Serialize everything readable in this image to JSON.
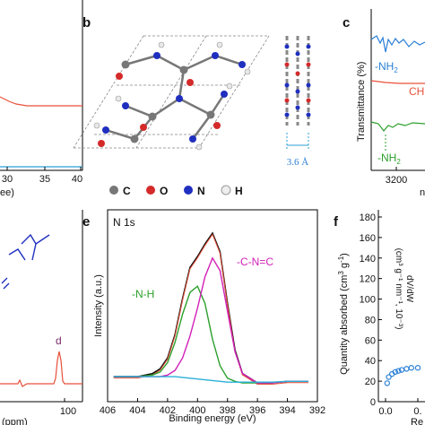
{
  "panels": {
    "a": {
      "x_ticks": [
        "30",
        "35",
        "40"
      ],
      "x_label_fragment": "ee)"
    },
    "b": {
      "letter": "b",
      "legend": [
        "C",
        "O",
        "N",
        "H"
      ],
      "spacing": "3.6 Å"
    },
    "c": {
      "letter": "c",
      "ylabel": "Transmittance (%)",
      "labels": {
        "nh2_top": "-NH",
        "nh2_top_sub": "2",
        "ch": "CH",
        "nh2_bottom": "-NH",
        "nh2_bottom_sub": "2"
      },
      "x_tick": "3200",
      "x_fragment": "n"
    },
    "d": {
      "peak_label": "d",
      "x_ticks": [
        "100"
      ],
      "x_label_fragment": "(ppm)"
    },
    "e": {
      "letter": "e",
      "inner_title": "N 1s",
      "xlabel": "Binding energy (eV)",
      "ylabel": "Intensity (a.u.)",
      "peak_labels": [
        "-N-H",
        "-C-N=C"
      ],
      "x_ticks": [
        "406",
        "404",
        "402",
        "400",
        "398",
        "396",
        "394",
        "392"
      ]
    },
    "f": {
      "letter": "f",
      "ylabel": "Quantity absorbed (cm",
      "ylabel_sup": "3",
      "ylabel_mid": " g",
      "ylabel_sup2": "-1",
      "ylabel_end": ")",
      "inset_ylabel_1": "dV/dW",
      "inset_ylabel_2": "(cm³ g⁻¹ nm⁻¹, 10⁻³)",
      "x_ticks": [
        "0.0",
        "0."
      ],
      "y_ticks": [
        "0",
        "20",
        "40",
        "60",
        "80",
        "100",
        "120",
        "140",
        "160",
        "180"
      ],
      "x_fragment": "Re"
    }
  },
  "chart_data": [
    {
      "type": "line",
      "panel": "e",
      "title": "N 1s",
      "xlabel": "Binding energy (eV)",
      "ylabel": "Intensity (a.u.)",
      "xlim": [
        406,
        392
      ],
      "x": [
        405.6,
        404,
        403,
        402.5,
        402,
        401.5,
        401,
        400.5,
        400,
        399.5,
        399,
        398.5,
        398,
        397.5,
        397,
        396,
        395,
        394,
        392.6
      ],
      "series": [
        {
          "name": "",
          "role": "raw",
          "values": [
            0.08,
            0.08,
            0.1,
            0.13,
            0.2,
            0.35,
            0.58,
            0.78,
            0.85,
            0.93,
            1.0,
            0.88,
            0.55,
            0.25,
            0.1,
            0.04,
            0.04,
            0.05,
            0.05
          ]
        },
        {
          "name": "-N-H",
          "role": "component",
          "values": [
            0.08,
            0.08,
            0.09,
            0.11,
            0.17,
            0.3,
            0.48,
            0.62,
            0.66,
            0.55,
            0.32,
            0.15,
            0.07,
            0.05,
            0.04,
            0.04,
            0.04,
            0.05,
            0.05
          ]
        },
        {
          "name": "-C-N=C",
          "role": "component",
          "values": [
            0.08,
            0.08,
            0.08,
            0.08,
            0.09,
            0.12,
            0.2,
            0.34,
            0.52,
            0.72,
            0.84,
            0.76,
            0.5,
            0.24,
            0.1,
            0.04,
            0.04,
            0.05,
            0.05
          ]
        },
        {
          "name": "",
          "role": "baseline",
          "values": [
            0.08,
            0.08,
            0.08,
            0.08,
            0.08,
            0.08,
            0.075,
            0.07,
            0.065,
            0.06,
            0.055,
            0.05,
            0.045,
            0.045,
            0.045,
            0.045,
            0.045,
            0.05,
            0.05
          ]
        }
      ]
    },
    {
      "type": "scatter",
      "panel": "f",
      "ylabel": "Quantity absorbed (cm3 g-1)",
      "ylim": [
        0,
        180
      ],
      "x": [
        0.01,
        0.02,
        0.04,
        0.06,
        0.08,
        0.1,
        0.13,
        0.16,
        0.2
      ],
      "series": [
        {
          "name": "",
          "values": [
            18,
            24,
            27,
            29,
            30,
            31,
            32,
            33,
            33
          ]
        }
      ]
    }
  ]
}
